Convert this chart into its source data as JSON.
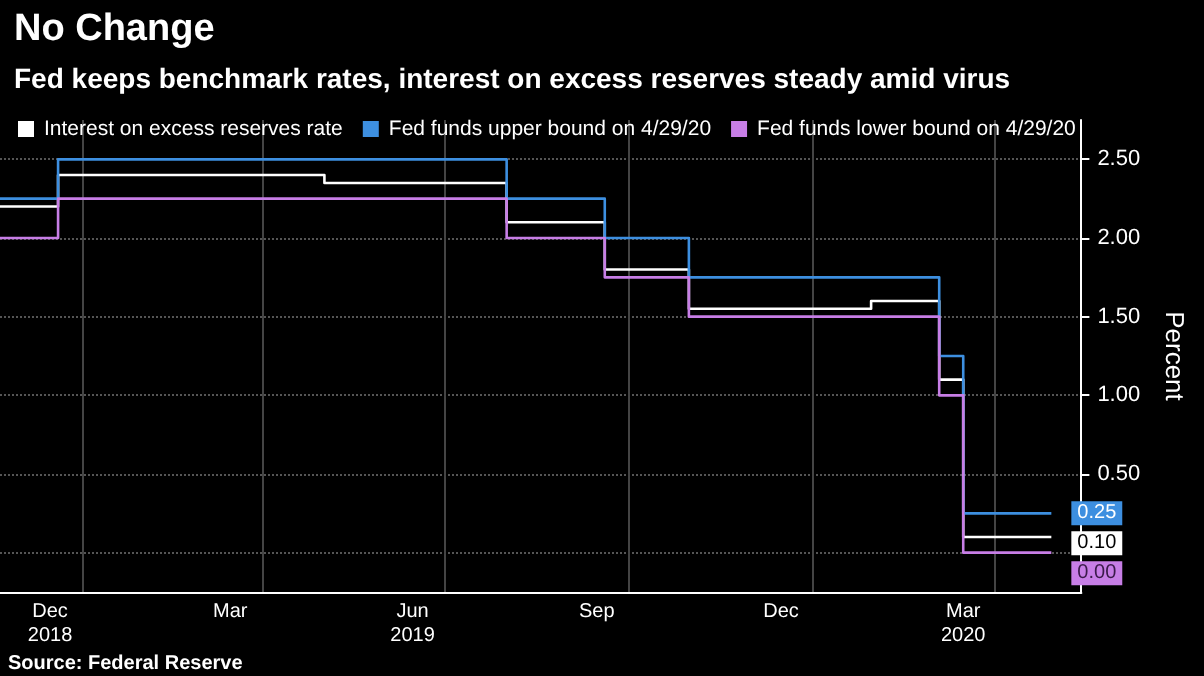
{
  "chart_data": {
    "type": "step",
    "title": "No Change",
    "subtitle": "Fed keeps benchmark rates, interest on excess reserves steady amid virus",
    "ylabel": "Percent",
    "xlim": [
      "2018-11-21",
      "2020-05-14"
    ],
    "xticks": [
      {
        "value": "2018-12-16",
        "label": "Dec\n2018"
      },
      {
        "value": "2019-03-16",
        "label": "Mar"
      },
      {
        "value": "2019-06-15",
        "label": "Jun\n2019"
      },
      {
        "value": "2019-09-15",
        "label": "Sep"
      },
      {
        "value": "2019-12-16",
        "label": "Dec"
      },
      {
        "value": "2020-03-16",
        "label": "Mar\n2020"
      },
      {
        "value": "2019-01-01",
        "label": null
      },
      {
        "value": "2019-04-01",
        "label": null
      },
      {
        "value": "2019-07-01",
        "label": null
      },
      {
        "value": "2019-10-01",
        "label": null
      },
      {
        "value": "2020-01-01",
        "label": null
      },
      {
        "value": "2020-04-01",
        "label": null
      }
    ],
    "ylim": [
      -0.25,
      2.75
    ],
    "yticks": [
      {
        "value": 0,
        "label": null
      },
      {
        "value": 0.5,
        "label": "0.50"
      },
      {
        "value": 1,
        "label": "1.00"
      },
      {
        "value": 1.5,
        "label": "1.50"
      },
      {
        "value": 2,
        "label": "2.00"
      },
      {
        "value": 2.5,
        "label": "2.50"
      }
    ],
    "grid": true,
    "legend": "top left",
    "marker": "none",
    "line_style": "solid",
    "series": [
      {
        "name": "Interest on excess reserves rate",
        "color": "#ffffff",
        "x": [
          "2018-11-21",
          "2018-12-20",
          "2019-05-02",
          "2019-08-01",
          "2019-09-19",
          "2019-10-31",
          "2020-01-30",
          "2020-03-04",
          "2020-03-16",
          "2020-04-29"
        ],
        "values": [
          2.2,
          2.4,
          2.35,
          2.1,
          1.8,
          1.55,
          1.6,
          1.1,
          0.1,
          0.1
        ],
        "value_labels": [
          null,
          null,
          null,
          null,
          null,
          null,
          null,
          null,
          null,
          "0.10"
        ]
      },
      {
        "name": "Fed funds upper bound on 4/29/20",
        "color": "#3d8fe0",
        "x": [
          "2018-11-21",
          "2018-12-20",
          "2019-08-01",
          "2019-09-19",
          "2019-10-31",
          "2020-03-04",
          "2020-03-16",
          "2020-04-29"
        ],
        "values": [
          2.25,
          2.5,
          2.25,
          2.0,
          1.75,
          1.25,
          0.25,
          0.25
        ],
        "value_labels": [
          null,
          null,
          null,
          null,
          null,
          null,
          null,
          "0.25"
        ]
      },
      {
        "name": "Fed funds lower bound on 4/29/20",
        "color": "#c77ee6",
        "x": [
          "2018-11-21",
          "2018-12-20",
          "2019-08-01",
          "2019-09-19",
          "2019-10-31",
          "2020-03-04",
          "2020-03-16",
          "2020-04-29"
        ],
        "values": [
          2.0,
          2.25,
          2.0,
          1.75,
          1.5,
          1.0,
          0.0,
          0.0
        ],
        "value_labels": [
          null,
          null,
          null,
          null,
          null,
          null,
          null,
          "0.00"
        ]
      }
    ],
    "annotations": [
      "Source: Federal Reserve"
    ]
  }
}
